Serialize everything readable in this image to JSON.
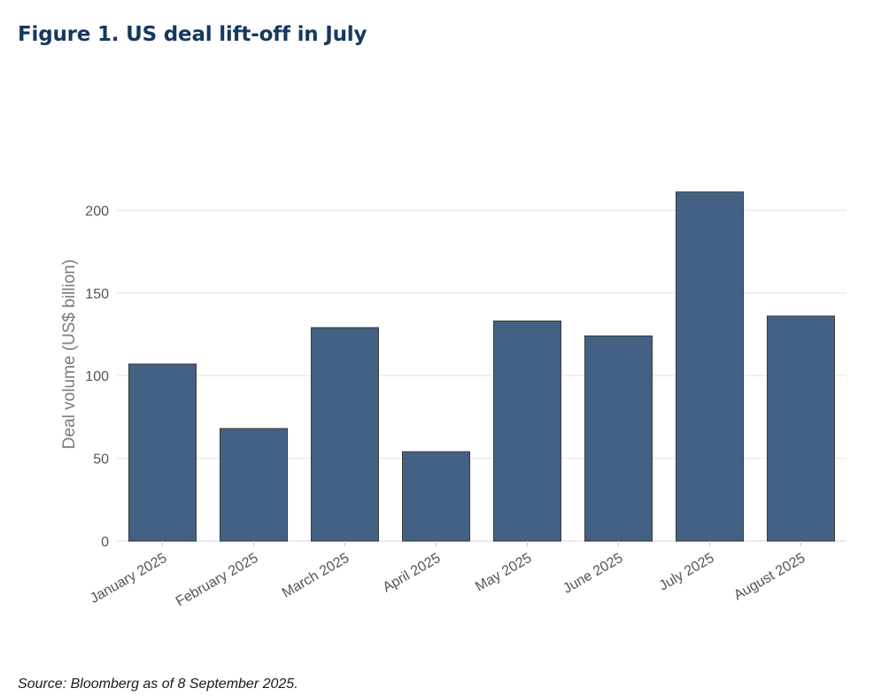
{
  "page": {
    "title": "Figure 1. US deal lift-off in July",
    "source": "Source: Bloomberg as of 8 September 2025."
  },
  "colors": {
    "bar_fill": "#2e5077",
    "bar_stroke": "#3a3a3a",
    "grid": "#ebebeb",
    "title": "#16375f"
  },
  "chart_data": {
    "type": "bar",
    "title": "Figure 1. US deal lift-off in July",
    "xlabel": "",
    "ylabel": "Deal volume (US$ billion)",
    "categories": [
      "January 2025",
      "February 2025",
      "March 2025",
      "April 2025",
      "May 2025",
      "June 2025",
      "July 2025",
      "August 2025"
    ],
    "values": [
      107,
      68,
      129,
      54,
      133,
      124,
      211,
      136
    ],
    "ylim": [
      0,
      220
    ],
    "yticks": [
      0,
      50,
      100,
      150,
      200
    ],
    "grid": true,
    "legend": "none"
  }
}
